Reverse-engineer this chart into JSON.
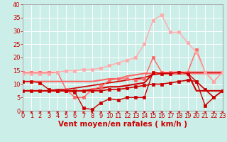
{
  "background_color": "#cceee8",
  "grid_color": "#ffffff",
  "xlabel": "Vent moyen/en rafales ( km/h )",
  "xlim": [
    0,
    23
  ],
  "ylim": [
    0,
    40
  ],
  "xticks": [
    0,
    1,
    2,
    3,
    4,
    5,
    6,
    7,
    8,
    9,
    10,
    11,
    12,
    13,
    14,
    15,
    16,
    17,
    18,
    19,
    20,
    21,
    22,
    23
  ],
  "yticks": [
    0,
    5,
    10,
    15,
    20,
    25,
    30,
    35,
    40
  ],
  "lines": [
    {
      "x": [
        0,
        1,
        2,
        3,
        4,
        5,
        6,
        7,
        8,
        9,
        10,
        11,
        12,
        13,
        14,
        15,
        16,
        17,
        18,
        19,
        20,
        21,
        22,
        23
      ],
      "y": [
        7.5,
        7.5,
        7.5,
        7.5,
        7.5,
        7.5,
        7.5,
        7.5,
        7.5,
        7.5,
        8,
        8,
        8.5,
        9,
        9.5,
        10,
        10,
        10.5,
        11,
        11.5,
        11,
        8,
        5,
        7.5
      ],
      "color": "#cc0000",
      "linewidth": 1.2,
      "marker": "s",
      "markersize": 2.5,
      "zorder": 5
    },
    {
      "x": [
        0,
        1,
        2,
        3,
        4,
        5,
        6,
        7,
        8,
        9,
        10,
        11,
        12,
        13,
        14,
        15,
        16,
        17,
        18,
        19,
        20,
        21,
        22,
        23
      ],
      "y": [
        11,
        11,
        10.5,
        8,
        7.5,
        7.5,
        7,
        1,
        0.5,
        3,
        4.5,
        4,
        5,
        5,
        5,
        14.5,
        14,
        14,
        14.5,
        14,
        11,
        2,
        5,
        7.5
      ],
      "color": "#cc0000",
      "linewidth": 1.0,
      "marker": "s",
      "markersize": 2.5,
      "zorder": 4
    },
    {
      "x": [
        0,
        1,
        2,
        3,
        4,
        5,
        6,
        7,
        8,
        9,
        10,
        11,
        12,
        13,
        14,
        15,
        16,
        17,
        18,
        19,
        20,
        21,
        22,
        23
      ],
      "y": [
        14.5,
        14.5,
        14.5,
        14.5,
        14.5,
        8,
        5,
        5,
        8,
        9,
        11.5,
        12,
        12,
        11.5,
        12,
        20,
        14.5,
        14.5,
        14.5,
        14.5,
        23,
        14.5,
        11,
        14.5
      ],
      "color": "#ff6666",
      "linewidth": 1.0,
      "marker": "s",
      "markersize": 2.5,
      "zorder": 3
    },
    {
      "x": [
        0,
        1,
        2,
        3,
        4,
        5,
        6,
        7,
        8,
        9,
        10,
        11,
        12,
        13,
        14,
        15,
        16,
        17,
        18,
        19,
        20,
        21,
        22,
        23
      ],
      "y": [
        7.5,
        7.5,
        7.5,
        7.5,
        7.5,
        7.5,
        7.5,
        7.5,
        8,
        8.5,
        9,
        9,
        9.5,
        10,
        10.5,
        14,
        14,
        14,
        14,
        14,
        7.5,
        7.5,
        7.5,
        7.5
      ],
      "color": "#cc0000",
      "linewidth": 1.5,
      "marker": null,
      "markersize": 0,
      "zorder": 2
    },
    {
      "x": [
        0,
        1,
        2,
        3,
        4,
        5,
        6,
        7,
        8,
        9,
        10,
        11,
        12,
        13,
        14,
        15,
        16,
        17,
        18,
        19,
        20,
        21,
        22,
        23
      ],
      "y": [
        11,
        11,
        11,
        11,
        11,
        11,
        11,
        11,
        11,
        11.5,
        12,
        12,
        13,
        13.5,
        14,
        14,
        14,
        14,
        14,
        14,
        14,
        14,
        14,
        14
      ],
      "color": "#ff6666",
      "linewidth": 1.5,
      "marker": null,
      "markersize": 0,
      "zorder": 2
    },
    {
      "x": [
        0,
        1,
        2,
        3,
        4,
        5,
        6,
        7,
        8,
        9,
        10,
        11,
        12,
        13,
        14,
        15,
        16,
        17,
        18,
        19,
        20,
        21,
        22,
        23
      ],
      "y": [
        7.5,
        7.5,
        7.5,
        7.5,
        8,
        8,
        8.5,
        9,
        9.5,
        10,
        10.5,
        11,
        11.5,
        12,
        12.5,
        13.5,
        14,
        14.5,
        14.5,
        14.5,
        14.5,
        14.5,
        14.5,
        14.5
      ],
      "color": "#cc0000",
      "linewidth": 1.2,
      "marker": null,
      "markersize": 0,
      "zorder": 2
    },
    {
      "x": [
        0,
        1,
        2,
        3,
        4,
        5,
        6,
        7,
        8,
        9,
        10,
        11,
        12,
        13,
        14,
        15,
        16,
        17,
        18,
        19,
        20,
        21,
        22,
        23
      ],
      "y": [
        14,
        14,
        14,
        14,
        14.5,
        15,
        15,
        15.5,
        15.5,
        16,
        17,
        18,
        19,
        20,
        25,
        34,
        36,
        29.5,
        29.5,
        25.5,
        22,
        14.5,
        11,
        14.5
      ],
      "color": "#ffaaaa",
      "linewidth": 1.0,
      "marker": "s",
      "markersize": 2.5,
      "zorder": 3
    }
  ],
  "arrow_color": "#cc0000",
  "xlabel_color": "#cc0000",
  "xlabel_fontsize": 7.5,
  "tick_fontsize": 6,
  "tick_color": "#cc0000",
  "arrow_directions": [
    1,
    1,
    1,
    1,
    1,
    1,
    1,
    1,
    -1,
    1,
    -1,
    1,
    1,
    1,
    1,
    1,
    1,
    1,
    1,
    1,
    1,
    1,
    1,
    1
  ]
}
